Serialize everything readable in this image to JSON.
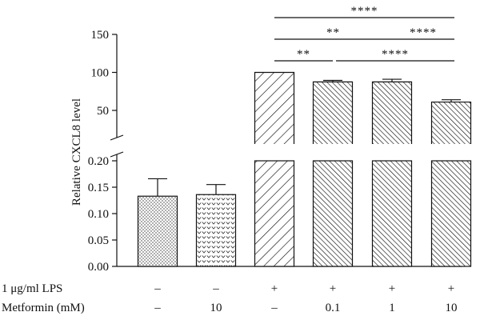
{
  "chart_data": {
    "type": "bar",
    "ylabel": "Relative CXCL8 level",
    "axis_break": {
      "lower_range": [
        0,
        0.2
      ],
      "upper_range": [
        30,
        150
      ]
    },
    "lower_ticks": [
      "0.00",
      "0.05",
      "0.10",
      "0.15",
      "0.20"
    ],
    "lower_tick_values": [
      0,
      0.05,
      0.1,
      0.15,
      0.2
    ],
    "upper_ticks": [
      "50",
      "100",
      "150"
    ],
    "upper_tick_values": [
      50,
      100,
      150
    ],
    "bars": [
      {
        "name": "control",
        "value": 0.133,
        "error": 0.033,
        "pattern": "dots"
      },
      {
        "name": "metformin-10",
        "value": 0.136,
        "error": 0.019,
        "pattern": "chevrons"
      },
      {
        "name": "lps",
        "value": 100,
        "error": 0,
        "pattern": "hatch-wide"
      },
      {
        "name": "lps-metformin-0.1",
        "value": 87.5,
        "error": 2,
        "pattern": "hatch-dense"
      },
      {
        "name": "lps-metformin-1",
        "value": 87.5,
        "error": 3.5,
        "pattern": "hatch-dense"
      },
      {
        "name": "lps-metformin-10",
        "value": 61,
        "error": 3,
        "pattern": "hatch-dense"
      }
    ],
    "rows": [
      {
        "label": "1 μg/ml LPS",
        "values": [
          "–",
          "–",
          "+",
          "+",
          "+",
          "+"
        ]
      },
      {
        "label": "Metformin (mM)",
        "values": [
          "–",
          "10",
          "–",
          "0.1",
          "1",
          "10"
        ]
      }
    ],
    "significance": [
      {
        "from": 2,
        "to": 5,
        "label": "****",
        "level": 3
      },
      {
        "from": 2,
        "to": 4,
        "label": "**",
        "level": 2
      },
      {
        "from": 4,
        "to": 5,
        "label": "****",
        "level": 2
      },
      {
        "from": 2,
        "to": 3,
        "label": "**",
        "level": 1
      },
      {
        "from": 3,
        "to": 5,
        "label": "****",
        "level": 1
      }
    ]
  }
}
